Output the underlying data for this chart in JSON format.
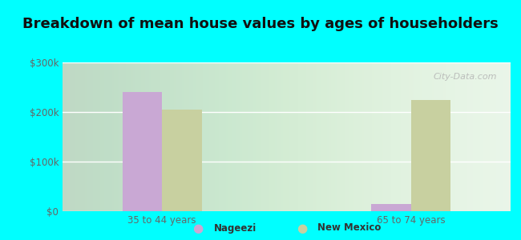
{
  "title": "Breakdown of mean house values by ages of householders",
  "categories": [
    "35 to 44 years",
    "65 to 74 years"
  ],
  "nageezi_values": [
    240000,
    15000
  ],
  "newmexico_values": [
    205000,
    225000
  ],
  "nageezi_color": "#c9a8d4",
  "newmexico_color": "#c8d0a0",
  "background_color": "#00ffff",
  "ylim": [
    0,
    300000
  ],
  "yticks": [
    0,
    100000,
    200000,
    300000
  ],
  "ytick_labels": [
    "$0",
    "$100k",
    "$200k",
    "$300k"
  ],
  "legend_labels": [
    "Nageezi",
    "New Mexico"
  ],
  "bar_width": 0.32,
  "title_fontsize": 13,
  "watermark": "City-Data.com"
}
